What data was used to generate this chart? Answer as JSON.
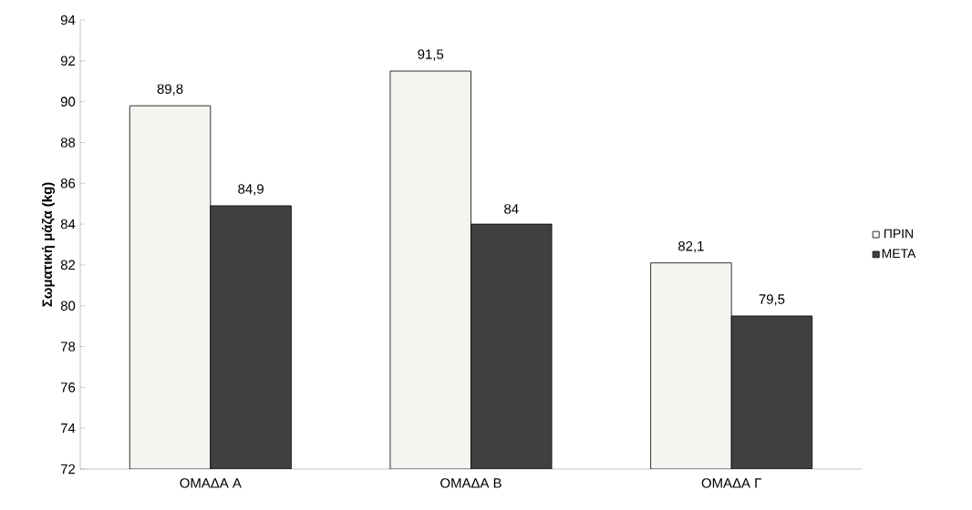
{
  "chart_data": {
    "type": "bar",
    "ylabel": "Σωματική μάζα (kg)",
    "categories": [
      "ΟΜΑΔΑ Α",
      "ΟΜΑΔΑ Β",
      "ΟΜΑΔΑ Γ"
    ],
    "series": [
      {
        "name": "ΠΡΙΝ",
        "color": "#f4f4f0",
        "values": [
          89.8,
          91.5,
          82.1
        ],
        "value_labels": [
          "89,8",
          "91,5",
          "82,1"
        ]
      },
      {
        "name": "ΜΕΤΑ",
        "color": "#404040",
        "values": [
          84.9,
          84,
          79.5
        ],
        "value_labels": [
          "84,9",
          "84",
          "79,5"
        ]
      }
    ],
    "ylim": [
      72,
      94
    ],
    "yticks": [
      72,
      74,
      76,
      78,
      80,
      82,
      84,
      86,
      88,
      90,
      92,
      94
    ],
    "grid": false,
    "legend": "right"
  }
}
